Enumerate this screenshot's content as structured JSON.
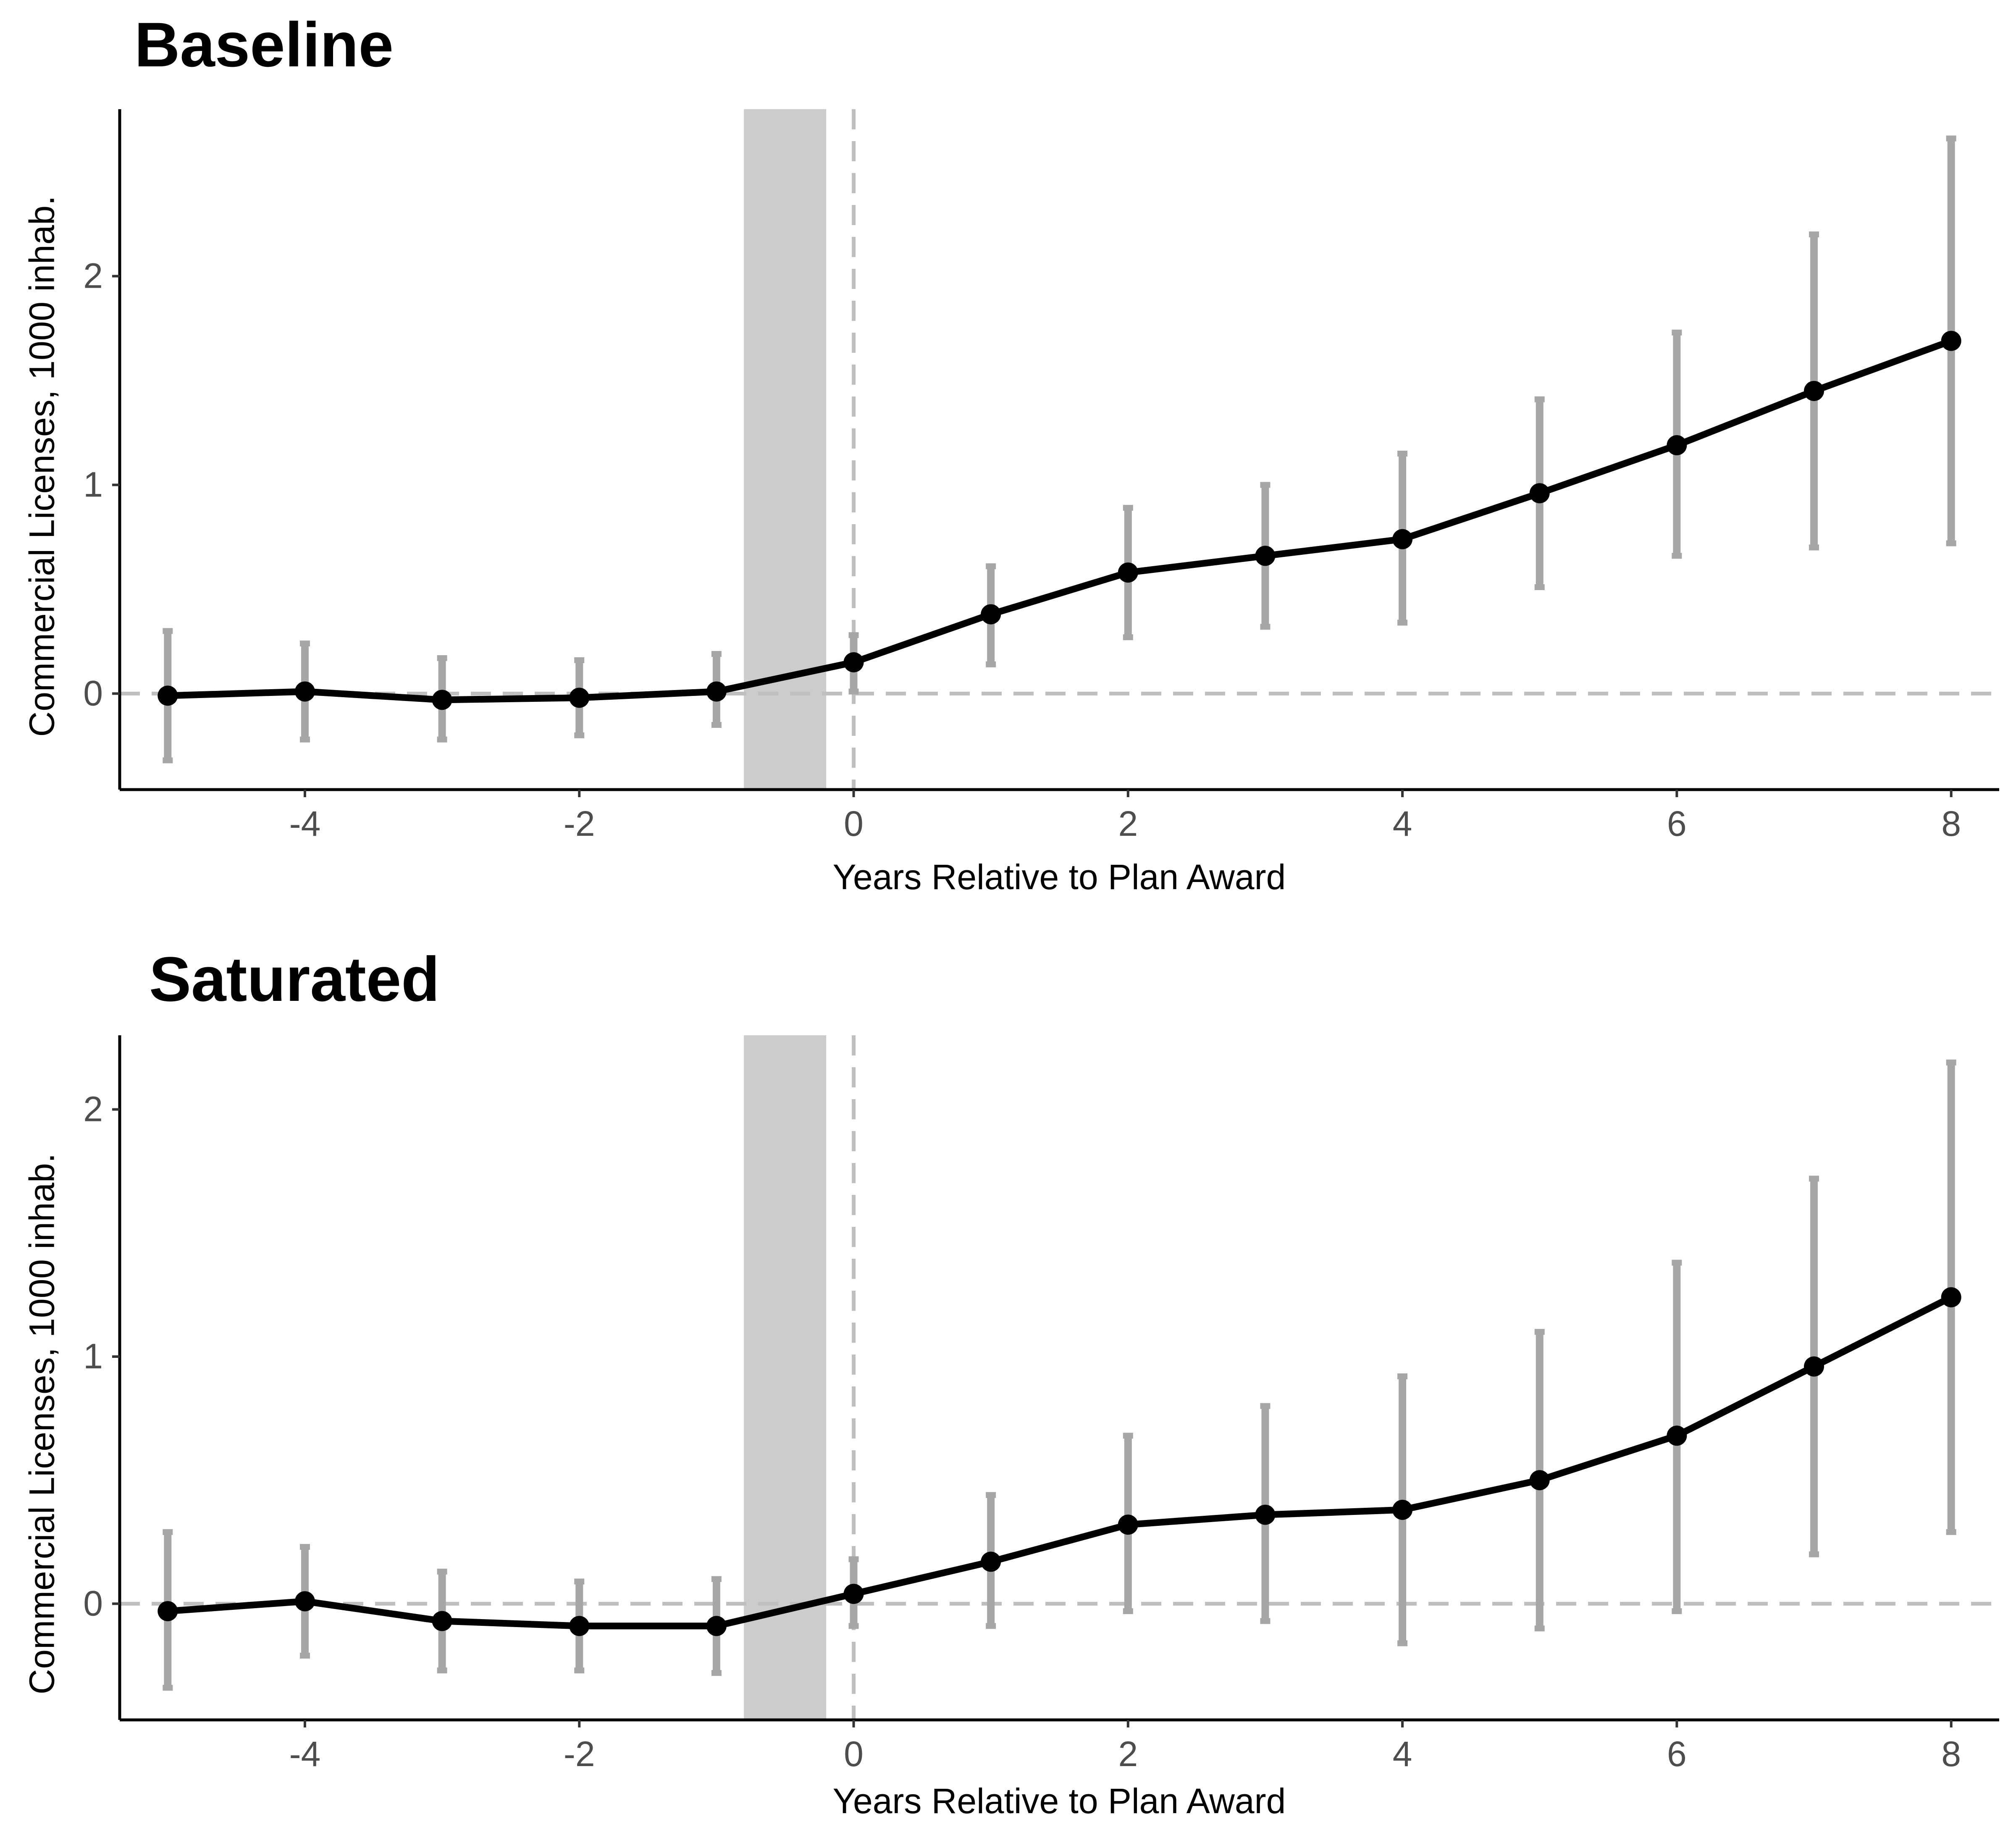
{
  "chart_data": [
    {
      "type": "line",
      "title": "Baseline",
      "xlabel": "Years Relative to Plan Award",
      "ylabel": "Commercial Licenses, 1000 inhab.",
      "xlim": [
        -5.35,
        8.35
      ],
      "ylim": [
        -0.46,
        2.8
      ],
      "xticks": [
        -4,
        -2,
        0,
        2,
        4,
        6,
        8
      ],
      "yticks": [
        0,
        1,
        2
      ],
      "shaded_band": [
        -0.8,
        -0.2
      ],
      "reference_lines": {
        "x": 0,
        "y": 0
      },
      "grid": false,
      "x": [
        -5,
        -4,
        -3,
        -2,
        -1,
        0,
        1,
        2,
        3,
        4,
        5,
        6,
        7,
        8
      ],
      "series": [
        {
          "values": [
            -0.01,
            0.01,
            -0.03,
            -0.02,
            0.01,
            0.15,
            0.38,
            0.58,
            0.66,
            0.74,
            0.96,
            1.19,
            1.45,
            1.69
          ],
          "ci_low": [
            -0.32,
            -0.22,
            -0.22,
            -0.2,
            -0.15,
            0.01,
            0.14,
            0.27,
            0.32,
            0.34,
            0.51,
            0.66,
            0.7,
            0.72
          ],
          "ci_high": [
            0.3,
            0.24,
            0.17,
            0.16,
            0.19,
            0.28,
            0.61,
            0.89,
            1.0,
            1.15,
            1.41,
            1.73,
            2.2,
            2.66
          ]
        }
      ]
    },
    {
      "type": "line",
      "title": "Saturated",
      "xlabel": "Years Relative to Plan Award",
      "ylabel": "Commercial Licenses, 1000 inhab.",
      "xlim": [
        -5.35,
        8.35
      ],
      "ylim": [
        -0.47,
        2.3
      ],
      "xticks": [
        -4,
        -2,
        0,
        2,
        4,
        6,
        8
      ],
      "yticks": [
        0,
        1,
        2
      ],
      "shaded_band": [
        -0.8,
        -0.2
      ],
      "reference_lines": {
        "x": 0,
        "y": 0
      },
      "grid": false,
      "x": [
        -5,
        -4,
        -3,
        -2,
        -1,
        0,
        1,
        2,
        3,
        4,
        5,
        6,
        7,
        8
      ],
      "series": [
        {
          "values": [
            -0.03,
            0.01,
            -0.07,
            -0.09,
            -0.09,
            0.04,
            0.17,
            0.32,
            0.36,
            0.38,
            0.5,
            0.68,
            0.96,
            1.24
          ],
          "ci_low": [
            -0.34,
            -0.21,
            -0.27,
            -0.27,
            -0.28,
            -0.09,
            -0.09,
            -0.03,
            -0.07,
            -0.16,
            -0.1,
            -0.03,
            0.2,
            0.29
          ],
          "ci_high": [
            0.29,
            0.23,
            0.13,
            0.09,
            0.1,
            0.18,
            0.44,
            0.68,
            0.8,
            0.92,
            1.1,
            1.38,
            1.72,
            2.19
          ]
        }
      ]
    }
  ]
}
